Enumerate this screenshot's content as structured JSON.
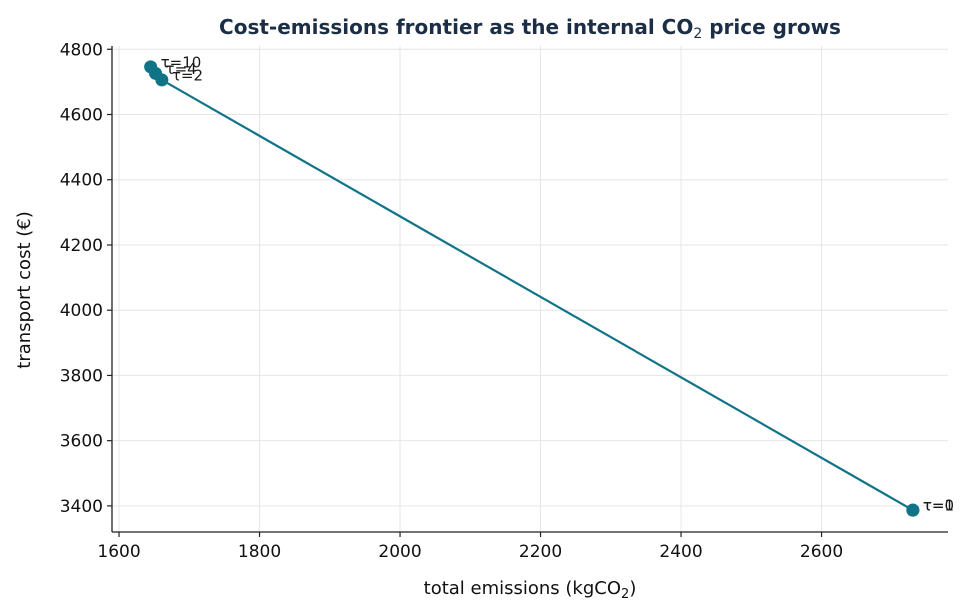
{
  "chart_data": {
    "type": "line",
    "title": "Cost-emissions frontier as the internal CO",
    "title_sub": "2",
    "title_end": " price grows",
    "xlabel": "total emissions (kgCO",
    "xlabel_sub": "2",
    "xlabel_end": ")",
    "ylabel": "transport cost (€)",
    "xlim": [
      1590,
      2780
    ],
    "ylim": [
      3320,
      4810
    ],
    "xticks": [
      1600,
      1800,
      2000,
      2200,
      2400,
      2600
    ],
    "yticks": [
      3400,
      3600,
      3800,
      4000,
      4200,
      4400,
      4600,
      4800
    ],
    "grid": true,
    "series": [
      {
        "color": "#117388",
        "points": [
          {
            "x": 2730,
            "y": 3387,
            "label": "τ=0"
          },
          {
            "x": 2730,
            "y": 3387,
            "label": "τ=1"
          },
          {
            "x": 1661,
            "y": 4706,
            "label": "τ=2"
          },
          {
            "x": 1652,
            "y": 4726,
            "label": "τ=4"
          },
          {
            "x": 1645,
            "y": 4746,
            "label": "τ=10"
          }
        ]
      }
    ]
  }
}
